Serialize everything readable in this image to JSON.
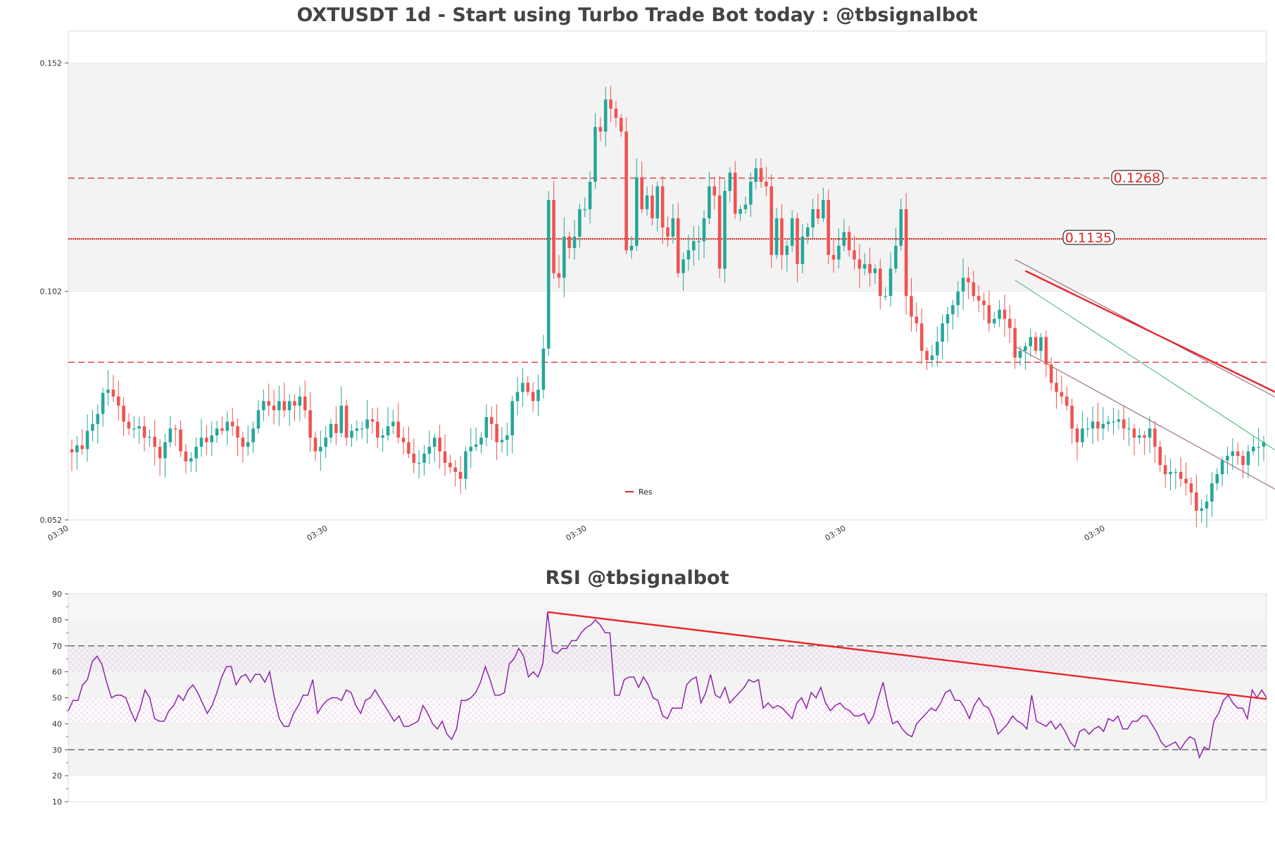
{
  "chart_data": [
    {
      "type": "candlestick",
      "title": "OXTUSDT 1d - Start using Turbo Trade Bot today : @tbsignalbot",
      "ylim": [
        0.052,
        0.159
      ],
      "yticks": [
        "0.152",
        "0.102",
        "0.052"
      ],
      "xticks": [
        "03:30",
        "03:30",
        "03:30",
        "03:30",
        "03:30",
        "03:30"
      ],
      "grid": false,
      "legend": {
        "position": "bottom-center",
        "entries": [
          {
            "name": "Res",
            "color": "#d62728"
          }
        ]
      },
      "bands": [
        {
          "from": 0.102,
          "to": 0.152
        }
      ],
      "levels": [
        {
          "value": 0.1268,
          "label": "0.1268",
          "style": "dashed"
        },
        {
          "value": 0.1135,
          "label": "0.1135",
          "style": "dotted"
        },
        {
          "value": 0.0865,
          "label": "",
          "style": "dashed"
        }
      ],
      "colors": {
        "up": "#26a69a",
        "down": "#ef5350",
        "level": "#d62728",
        "channel_mid": "#3cb371",
        "channel_edge": "#8b5a6b",
        "trend": "#e8262a"
      },
      "close": [
        0.0668,
        0.0683,
        0.0675,
        0.0715,
        0.073,
        0.0752,
        0.0798,
        0.0805,
        0.079,
        0.077,
        0.0735,
        0.072,
        0.072,
        0.0725,
        0.07,
        0.0702,
        0.068,
        0.0655,
        0.069,
        0.072,
        0.0718,
        0.067,
        0.0648,
        0.0655,
        0.068,
        0.07,
        0.069,
        0.0705,
        0.072,
        0.0715,
        0.0735,
        0.0725,
        0.07,
        0.068,
        0.069,
        0.072,
        0.076,
        0.078,
        0.077,
        0.076,
        0.078,
        0.076,
        0.078,
        0.077,
        0.079,
        0.076,
        0.07,
        0.067,
        0.068,
        0.07,
        0.073,
        0.071,
        0.077,
        0.07,
        0.0715,
        0.072,
        0.072,
        0.074,
        0.0735,
        0.07,
        0.0705,
        0.0725,
        0.0735,
        0.07,
        0.069,
        0.0665,
        0.0645,
        0.0645,
        0.0665,
        0.068,
        0.07,
        0.067,
        0.0645,
        0.0635,
        0.0625,
        0.061,
        0.067,
        0.068,
        0.0685,
        0.07,
        0.0745,
        0.073,
        0.069,
        0.0695,
        0.0705,
        0.078,
        0.08,
        0.082,
        0.08,
        0.078,
        0.0805,
        0.0895,
        0.122,
        0.106,
        0.105,
        0.114,
        0.1115,
        0.114,
        0.12,
        0.12,
        0.126,
        0.138,
        0.137,
        0.144,
        0.142,
        0.14,
        0.137,
        0.111,
        0.112,
        0.127,
        0.12,
        0.123,
        0.118,
        0.125,
        0.116,
        0.114,
        0.118,
        0.106,
        0.109,
        0.111,
        0.113,
        0.113,
        0.118,
        0.125,
        0.123,
        0.107,
        0.124,
        0.128,
        0.119,
        0.12,
        0.121,
        0.126,
        0.129,
        0.126,
        0.125,
        0.11,
        0.118,
        0.11,
        0.112,
        0.118,
        0.108,
        0.114,
        0.116,
        0.12,
        0.118,
        0.122,
        0.11,
        0.109,
        0.112,
        0.115,
        0.111,
        0.109,
        0.107,
        0.108,
        0.106,
        0.107,
        0.101,
        0.101,
        0.107,
        0.112,
        0.12,
        0.101,
        0.0965,
        0.095,
        0.089,
        0.087,
        0.088,
        0.091,
        0.095,
        0.097,
        0.099,
        0.102,
        0.105,
        0.104,
        0.101,
        0.1,
        0.099,
        0.095,
        0.096,
        0.098,
        0.096,
        0.094,
        0.0875,
        0.089,
        0.09,
        0.092,
        0.089,
        0.092,
        0.086,
        0.082,
        0.08,
        0.079,
        0.077,
        0.072,
        0.069,
        0.072,
        0.072,
        0.0735,
        0.072,
        0.073,
        0.0735,
        0.0735,
        0.074,
        0.072,
        0.072,
        0.07,
        0.0705,
        0.07,
        0.072,
        0.068,
        0.064,
        0.062,
        0.0625,
        0.0625,
        0.061,
        0.06,
        0.058,
        0.054,
        0.0545,
        0.056,
        0.06,
        0.062,
        0.065,
        0.066,
        0.067,
        0.066,
        0.064,
        0.067,
        0.068,
        0.068,
        0.069
      ]
    },
    {
      "type": "line",
      "title": "RSI @tbsignalbot",
      "ylim": [
        10,
        90
      ],
      "yticks": [
        "90",
        "80",
        "70",
        "60",
        "50",
        "40",
        "30",
        "20",
        "10"
      ],
      "grid": false,
      "bands": [
        {
          "from": 20,
          "to": 40
        },
        {
          "from": 50,
          "to": 80
        }
      ],
      "hatched_bands": [
        {
          "from": 40,
          "to": 50
        },
        {
          "from": 60,
          "to": 70
        }
      ],
      "levels": [
        {
          "value": 70,
          "style": "dashed"
        },
        {
          "value": 30,
          "style": "dashed"
        }
      ],
      "colors": {
        "line": "#8e24aa",
        "trend": "#e8262a",
        "level": "#555555"
      },
      "values": [
        45,
        49,
        49,
        55,
        57,
        64,
        66,
        63,
        56,
        50,
        51,
        51,
        50,
        45,
        41,
        46,
        53,
        50,
        42,
        41,
        41,
        45,
        47,
        51,
        49,
        53,
        55,
        52,
        48,
        44,
        47,
        52,
        58,
        62,
        62,
        55,
        58,
        59,
        56,
        59,
        59,
        56,
        60,
        50,
        42,
        39,
        39,
        44,
        47,
        51,
        51,
        57,
        44,
        47,
        49,
        50,
        50,
        49,
        53,
        52,
        47,
        44,
        49,
        50,
        53,
        50,
        47,
        44,
        41,
        43,
        39,
        39,
        40,
        41,
        47,
        44,
        40,
        38,
        41,
        36,
        34,
        38,
        49,
        49,
        50,
        52,
        56,
        62,
        57,
        51,
        51,
        52,
        63,
        65,
        69,
        66,
        58,
        60,
        58,
        63,
        83,
        68,
        67,
        69,
        69,
        72,
        72,
        75,
        77,
        78,
        80,
        78,
        75,
        75,
        51,
        51,
        57,
        58,
        58,
        54,
        58,
        55,
        50,
        49,
        43,
        42,
        46,
        46,
        46,
        55,
        57,
        58,
        48,
        52,
        59,
        51,
        50,
        54,
        48,
        50,
        52,
        54,
        57,
        56,
        57,
        46,
        48,
        46,
        47,
        46,
        44,
        42,
        48,
        50,
        46,
        52,
        50,
        54,
        48,
        45,
        47,
        48,
        46,
        45,
        43,
        43,
        44,
        40,
        43,
        50,
        56,
        47,
        40,
        41,
        38,
        36,
        35,
        40,
        42,
        44,
        46,
        45,
        48,
        52,
        53,
        49,
        49,
        46,
        42,
        47,
        50,
        47,
        46,
        42,
        36,
        38,
        40,
        43,
        41,
        40,
        38,
        51,
        41,
        40,
        39,
        41,
        38,
        40,
        37,
        33,
        31,
        37,
        38,
        36,
        38,
        39,
        37,
        42,
        41,
        43,
        38,
        38,
        41,
        41,
        43,
        43,
        40,
        37,
        33,
        31,
        32,
        33,
        30,
        33,
        35,
        34,
        27,
        31,
        30,
        41,
        44,
        49,
        51,
        48,
        46,
        46,
        42,
        53,
        50,
        53,
        50
      ],
      "trendline": {
        "from": [
          100,
          83
        ],
        "to": [
          250,
          49.5
        ]
      }
    }
  ]
}
